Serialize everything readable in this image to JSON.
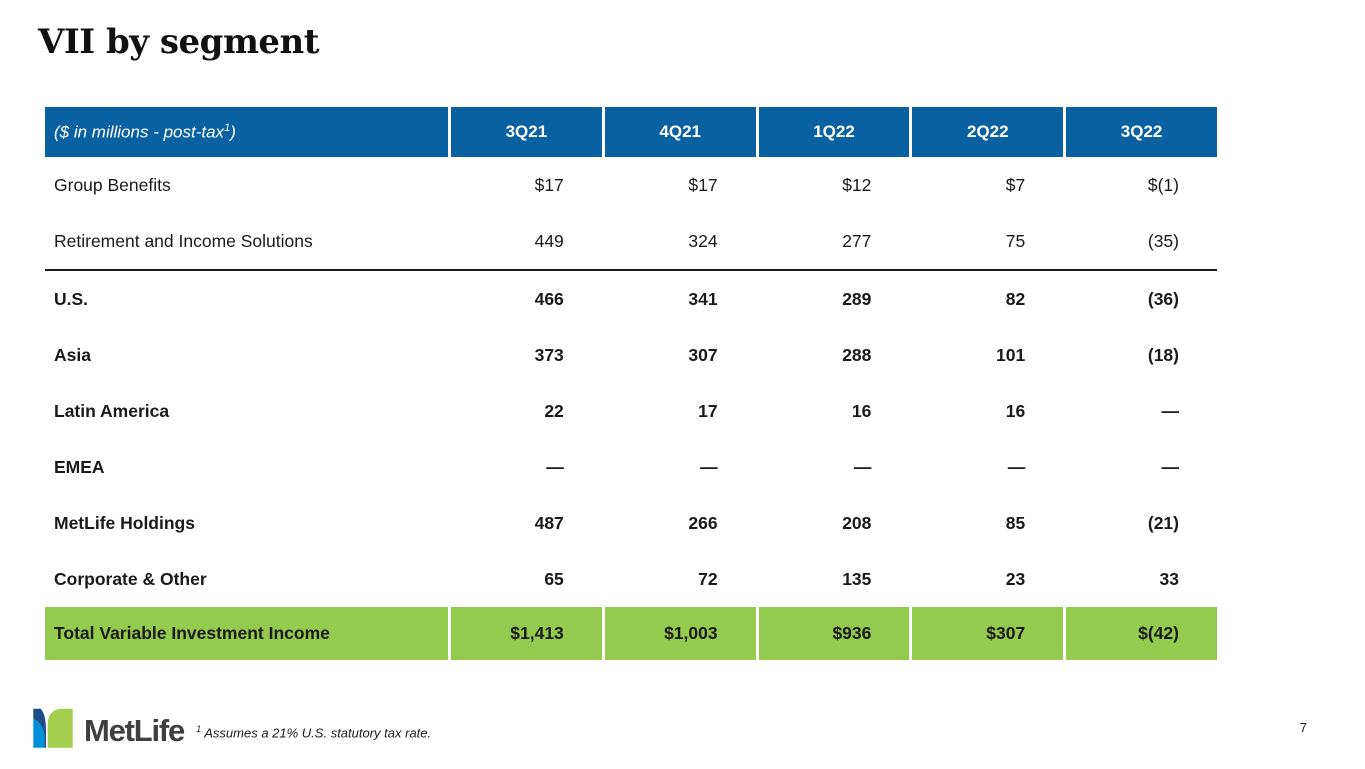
{
  "slide": {
    "title": "VII by segment",
    "page_number": "7"
  },
  "colors": {
    "header_blue": "#0a61a1",
    "total_green": "#94ca4d",
    "logo_light_blue": "#0090DA",
    "logo_dark_blue": "#1d4e89",
    "logo_green": "#A4CE4E",
    "wordmark_gray": "#3f3f3f"
  },
  "table": {
    "header": {
      "label_text": "($ in millions - post-tax",
      "label_sup": "1",
      "label_suffix": ")",
      "columns": [
        "3Q21",
        "4Q21",
        "1Q22",
        "2Q22",
        "3Q22"
      ]
    },
    "rows": [
      {
        "label": "Group Benefits",
        "bold": false,
        "rule_after": false,
        "values": [
          "$17",
          "$17",
          "$12",
          "$7",
          "$(1)"
        ]
      },
      {
        "label": "Retirement and Income Solutions",
        "bold": false,
        "rule_after": true,
        "values": [
          "449",
          "324",
          "277",
          "75",
          "(35)"
        ]
      },
      {
        "label": "U.S.",
        "bold": true,
        "rule_after": false,
        "values": [
          "466",
          "341",
          "289",
          "82",
          "(36)"
        ]
      },
      {
        "label": "Asia",
        "bold": true,
        "rule_after": false,
        "values": [
          "373",
          "307",
          "288",
          "101",
          "(18)"
        ]
      },
      {
        "label": "Latin America",
        "bold": true,
        "rule_after": false,
        "values": [
          "22",
          "17",
          "16",
          "16",
          "—"
        ]
      },
      {
        "label": "EMEA",
        "bold": true,
        "rule_after": false,
        "values": [
          "—",
          "—",
          "—",
          "—",
          "—"
        ]
      },
      {
        "label": "MetLife Holdings",
        "bold": true,
        "rule_after": false,
        "values": [
          "487",
          "266",
          "208",
          "85",
          "(21)"
        ]
      },
      {
        "label": "Corporate & Other",
        "bold": true,
        "rule_after": false,
        "values": [
          "65",
          "72",
          "135",
          "23",
          "33"
        ]
      }
    ],
    "total_row": {
      "label": "Total Variable Investment Income",
      "values": [
        "$1,413",
        "$1,003",
        "$936",
        "$307",
        "$(42)"
      ]
    }
  },
  "footer": {
    "logo_text": "MetLife",
    "footnote_sup": "1",
    "footnote_text": " Assumes a 21% U.S. statutory tax rate."
  }
}
